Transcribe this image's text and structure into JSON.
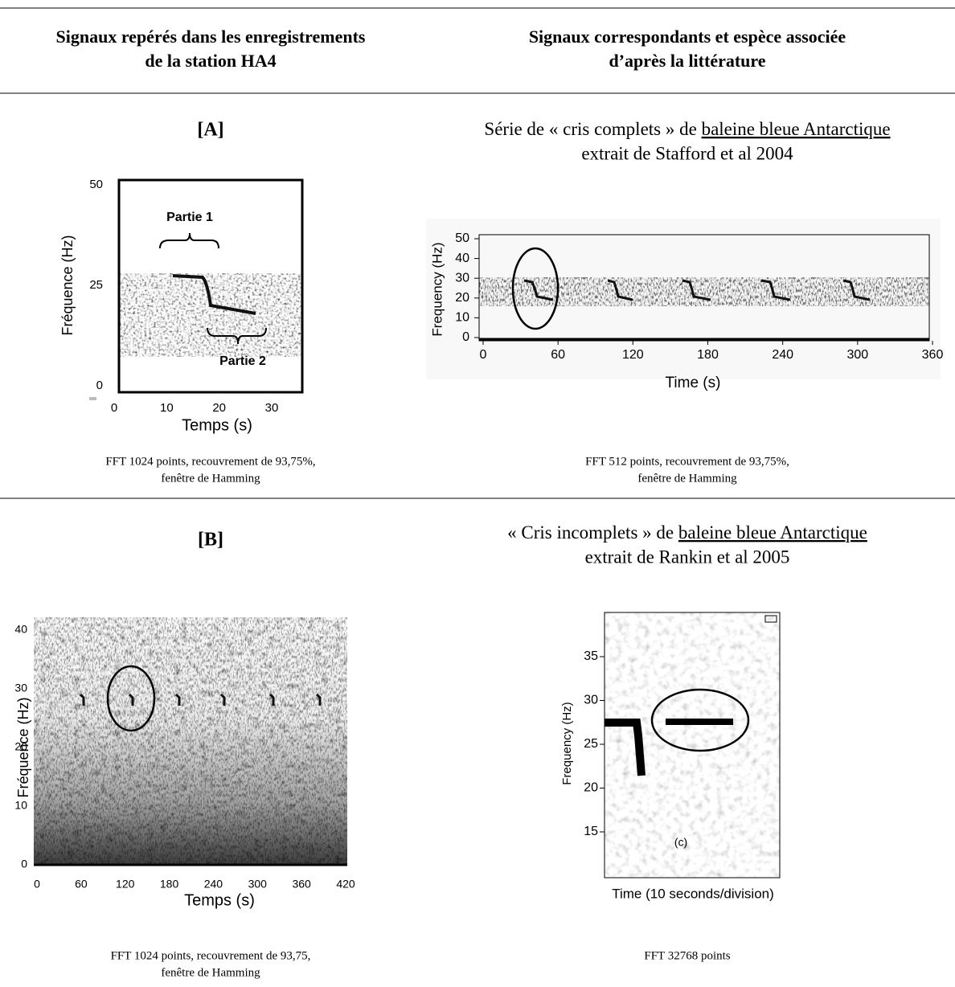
{
  "header": {
    "left": [
      "Signaux repérés dans les enregistrements",
      "de la station HA4"
    ],
    "right": [
      "Signaux correspondants et espèce associée",
      "d’après la littérature"
    ]
  },
  "rows": [
    {
      "label": "[A]",
      "ref_title": "Série de « cris complets » de ",
      "ref_link": "baleine bleue Antarctique",
      "ref_source": "extrait de Stafford et al 2004",
      "left_figure": {
        "ylabel": "Fréquence (Hz)",
        "xlabel": "Temps (s)",
        "yticks": [
          0,
          25,
          50
        ],
        "xticks": [
          0,
          10,
          20,
          30
        ],
        "annotations": [
          "Partie 1",
          "Partie 2"
        ]
      },
      "right_figure": {
        "ylabel": "Frequency (Hz)",
        "xlabel": "Time (s)",
        "yticks": [
          0,
          10,
          20,
          30,
          40,
          50
        ],
        "xticks": [
          0,
          60,
          120,
          180,
          240,
          300,
          360
        ]
      },
      "left_caption": [
        "FFT 1024 points, recouvrement de 93,75%,",
        "fenêtre de Hamming"
      ],
      "right_caption": [
        "FFT 512 points,  recouvrement de 93,75%,",
        "fenêtre de Hamming"
      ]
    },
    {
      "label": "[B]",
      "ref_title": "« Cris incomplets » de ",
      "ref_link": "baleine bleue Antarctique",
      "ref_source": "extrait de Rankin et al 2005",
      "left_figure": {
        "ylabel": "Fréquence (Hz)",
        "xlabel": "Temps (s)",
        "yticks": [
          0,
          10,
          20,
          30,
          40
        ],
        "xticks": [
          0,
          60,
          120,
          180,
          240,
          300,
          360,
          420
        ]
      },
      "right_figure": {
        "ylabel": "Frequency (Hz)",
        "xlabel": "Time (10 seconds/division)",
        "yticks": [
          15,
          20,
          25,
          30,
          35
        ],
        "annotations": [
          "(c)"
        ]
      },
      "left_caption": [
        "FFT 1024 points,  recouvrement de 93,75,",
        "fenêtre de Hamming"
      ],
      "right_caption": [
        "FFT 32768 points"
      ]
    }
  ]
}
